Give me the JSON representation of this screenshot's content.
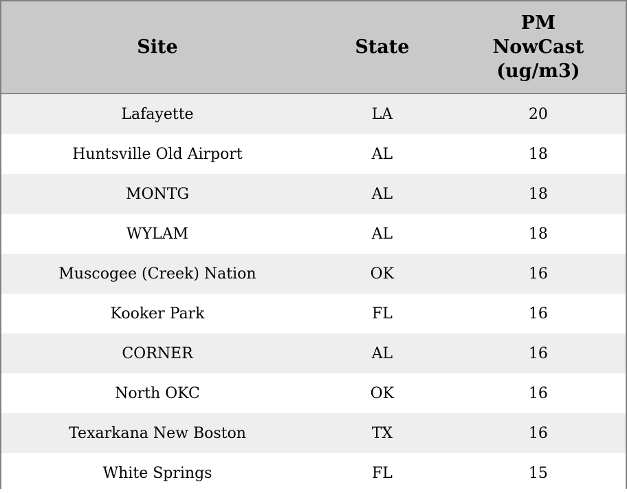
{
  "table": {
    "headers": {
      "site": "Site",
      "state": "State",
      "pm": "PM\nNowCast\n(ug/m3)"
    },
    "rows": [
      {
        "site": "Lafayette",
        "state": "LA",
        "pm": "20"
      },
      {
        "site": "Huntsville Old Airport",
        "state": "AL",
        "pm": "18"
      },
      {
        "site": "MONTG",
        "state": "AL",
        "pm": "18"
      },
      {
        "site": "WYLAM",
        "state": "AL",
        "pm": "18"
      },
      {
        "site": "Muscogee (Creek) Nation",
        "state": "OK",
        "pm": "16"
      },
      {
        "site": "Kooker Park",
        "state": "FL",
        "pm": "16"
      },
      {
        "site": "CORNER",
        "state": "AL",
        "pm": "16"
      },
      {
        "site": "North OKC",
        "state": "OK",
        "pm": "16"
      },
      {
        "site": "Texarkana New Boston",
        "state": "TX",
        "pm": "16"
      },
      {
        "site": "White Springs",
        "state": "FL",
        "pm": "15"
      }
    ],
    "colors": {
      "header_bg": "#c9c9c9",
      "row_alt_bg": "#eeeeee",
      "row_bg": "#ffffff",
      "border": "#7f7f7f"
    }
  }
}
